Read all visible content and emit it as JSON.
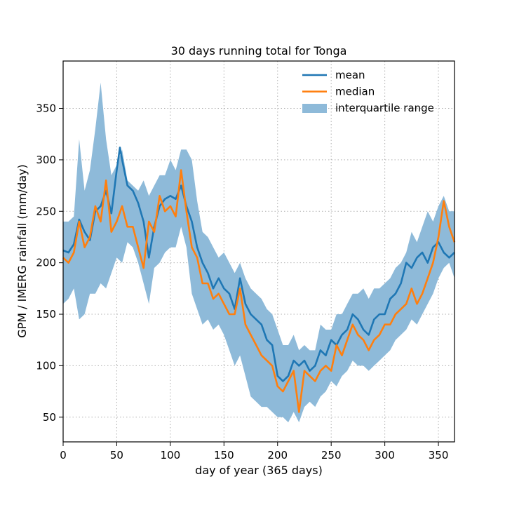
{
  "chart_data": {
    "type": "line",
    "title": "30 days running total for Tonga",
    "xlabel": "day of year (365 days)",
    "ylabel": "GPM / IMERG rainfall (mm/day)",
    "xlim": [
      0,
      365
    ],
    "ylim": [
      26,
      396
    ],
    "xticks": [
      0,
      50,
      100,
      150,
      200,
      250,
      300,
      350
    ],
    "yticks": [
      50,
      100,
      150,
      200,
      250,
      300,
      350
    ],
    "grid": true,
    "legend_position": "top-right",
    "colors": {
      "mean": "#1f77b4",
      "median": "#ff7f0e",
      "iqr": "#8ebad9"
    },
    "legend": [
      {
        "key": "mean",
        "label": "mean",
        "kind": "line"
      },
      {
        "key": "median",
        "label": "median",
        "kind": "line"
      },
      {
        "key": "iqr",
        "label": "interquartile range",
        "kind": "patch"
      }
    ],
    "series": [
      {
        "name": "mean",
        "key": "mean",
        "x": [
          0,
          5,
          10,
          15,
          20,
          25,
          30,
          35,
          40,
          45,
          50,
          53,
          55,
          60,
          65,
          70,
          75,
          80,
          85,
          90,
          95,
          100,
          105,
          110,
          115,
          120,
          125,
          130,
          135,
          140,
          145,
          150,
          155,
          160,
          165,
          170,
          175,
          180,
          185,
          190,
          195,
          200,
          205,
          210,
          215,
          220,
          225,
          230,
          235,
          240,
          245,
          250,
          255,
          260,
          265,
          270,
          275,
          280,
          285,
          290,
          295,
          300,
          305,
          310,
          315,
          320,
          325,
          330,
          335,
          340,
          345,
          350,
          355,
          360,
          365
        ],
        "y": [
          212,
          210,
          218,
          242,
          230,
          222,
          250,
          255,
          270,
          248,
          290,
          312,
          300,
          275,
          270,
          258,
          240,
          205,
          235,
          255,
          262,
          265,
          262,
          275,
          255,
          240,
          215,
          200,
          190,
          175,
          185,
          175,
          170,
          155,
          185,
          160,
          150,
          145,
          140,
          125,
          120,
          90,
          85,
          90,
          105,
          100,
          105,
          95,
          100,
          115,
          110,
          125,
          120,
          130,
          135,
          150,
          145,
          135,
          130,
          145,
          150,
          150,
          165,
          170,
          180,
          200,
          195,
          205,
          210,
          200,
          215,
          220,
          210,
          205,
          210
        ]
      },
      {
        "name": "median",
        "key": "median",
        "x": [
          0,
          5,
          10,
          15,
          20,
          25,
          30,
          35,
          40,
          45,
          50,
          55,
          60,
          65,
          70,
          75,
          80,
          85,
          90,
          95,
          100,
          105,
          110,
          115,
          120,
          125,
          130,
          135,
          140,
          145,
          150,
          155,
          160,
          165,
          170,
          175,
          180,
          185,
          190,
          195,
          200,
          205,
          210,
          215,
          220,
          225,
          230,
          235,
          240,
          245,
          250,
          255,
          260,
          265,
          270,
          275,
          280,
          285,
          290,
          295,
          300,
          305,
          310,
          315,
          320,
          325,
          330,
          335,
          340,
          345,
          350,
          355,
          360,
          365
        ],
        "y": [
          205,
          200,
          210,
          240,
          215,
          225,
          255,
          240,
          280,
          230,
          240,
          255,
          235,
          235,
          215,
          195,
          240,
          230,
          265,
          250,
          255,
          245,
          290,
          250,
          215,
          205,
          180,
          180,
          165,
          170,
          160,
          150,
          150,
          175,
          140,
          130,
          120,
          110,
          105,
          100,
          80,
          75,
          85,
          95,
          55,
          95,
          90,
          85,
          95,
          100,
          95,
          120,
          110,
          125,
          140,
          130,
          125,
          115,
          125,
          130,
          140,
          140,
          150,
          155,
          160,
          175,
          160,
          170,
          185,
          200,
          225,
          260,
          235,
          220
        ]
      },
      {
        "name": "interquartile range",
        "key": "iqr",
        "x": [
          0,
          5,
          10,
          15,
          20,
          25,
          30,
          35,
          40,
          45,
          50,
          55,
          60,
          65,
          70,
          75,
          80,
          85,
          90,
          95,
          100,
          105,
          110,
          115,
          120,
          125,
          130,
          135,
          140,
          145,
          150,
          155,
          160,
          165,
          170,
          175,
          180,
          185,
          190,
          195,
          200,
          205,
          210,
          215,
          220,
          225,
          230,
          235,
          240,
          245,
          250,
          255,
          260,
          265,
          270,
          275,
          280,
          285,
          290,
          295,
          300,
          305,
          310,
          315,
          320,
          325,
          330,
          335,
          340,
          345,
          350,
          355,
          360,
          365
        ],
        "upper": [
          240,
          240,
          245,
          320,
          270,
          290,
          330,
          375,
          320,
          285,
          295,
          310,
          280,
          275,
          270,
          280,
          265,
          275,
          285,
          285,
          300,
          290,
          310,
          310,
          300,
          260,
          230,
          225,
          215,
          205,
          210,
          200,
          190,
          200,
          185,
          175,
          170,
          165,
          155,
          150,
          135,
          120,
          120,
          130,
          115,
          120,
          115,
          115,
          140,
          135,
          135,
          150,
          150,
          160,
          170,
          170,
          175,
          165,
          175,
          175,
          180,
          185,
          195,
          200,
          210,
          230,
          220,
          235,
          250,
          240,
          255,
          265,
          250,
          250
        ],
        "lower": [
          160,
          165,
          175,
          145,
          150,
          170,
          170,
          180,
          175,
          190,
          205,
          200,
          220,
          215,
          200,
          180,
          160,
          195,
          200,
          210,
          215,
          215,
          235,
          215,
          170,
          155,
          140,
          145,
          135,
          140,
          130,
          115,
          100,
          110,
          90,
          70,
          65,
          60,
          60,
          55,
          50,
          50,
          45,
          55,
          45,
          60,
          65,
          60,
          70,
          75,
          85,
          80,
          90,
          95,
          105,
          100,
          100,
          95,
          100,
          105,
          110,
          115,
          125,
          130,
          135,
          145,
          140,
          150,
          160,
          170,
          185,
          195,
          200,
          185
        ]
      }
    ]
  }
}
